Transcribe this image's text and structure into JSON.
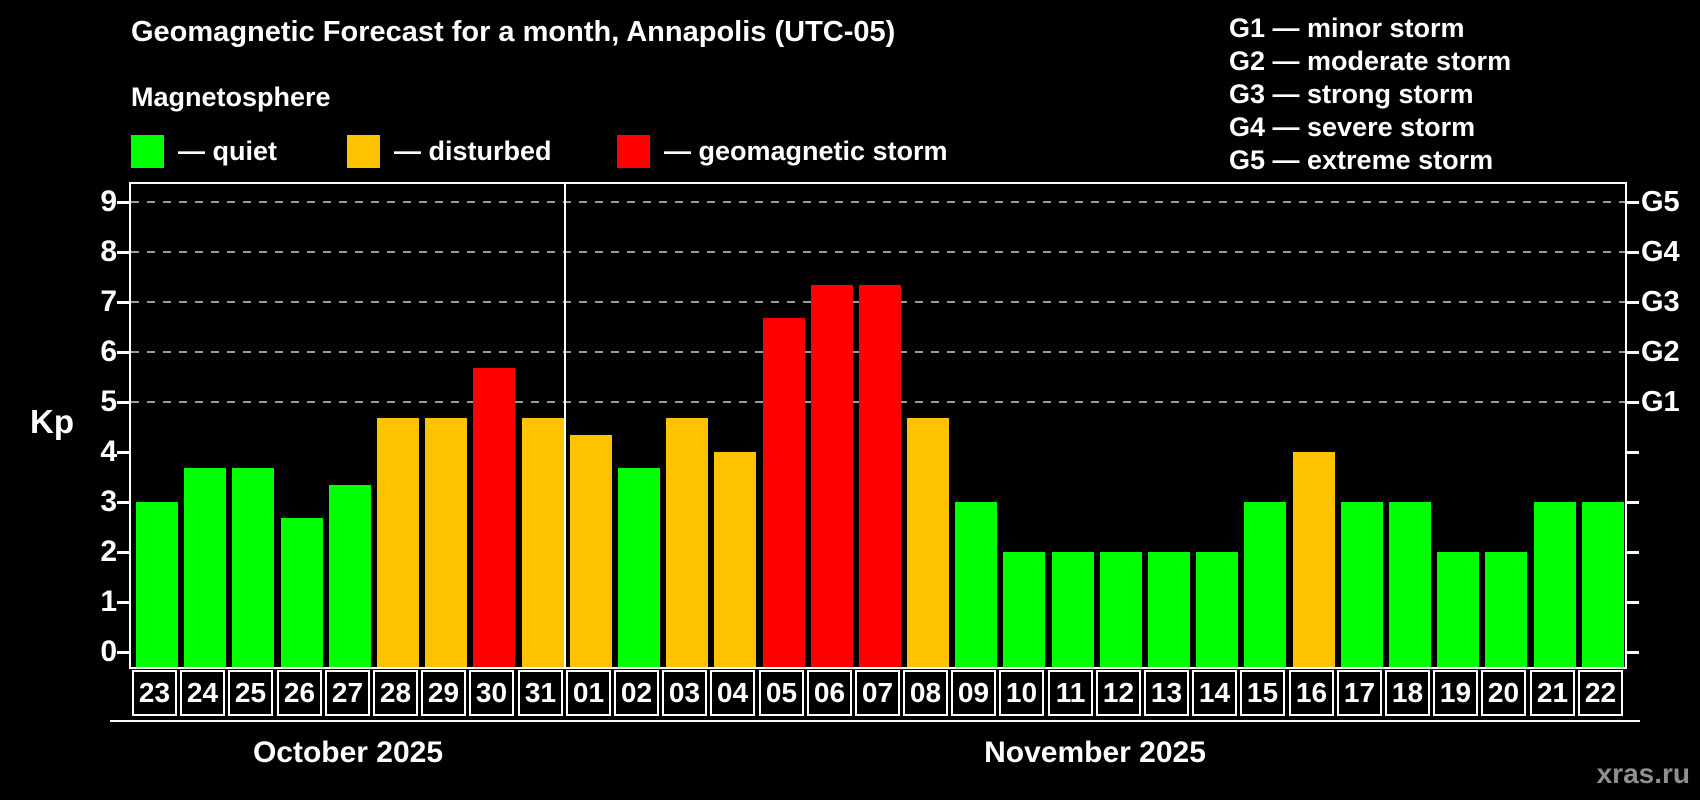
{
  "header": {
    "title": "Geomagnetic Forecast for a month, Annapolis (UTC-05)",
    "subtitle": "Magnetosphere"
  },
  "legend": {
    "items": [
      {
        "name": "quiet",
        "label": "— quiet",
        "color": "#00ff00"
      },
      {
        "name": "disturbed",
        "label": "— disturbed",
        "color": "#ffc200"
      },
      {
        "name": "storm",
        "label": "— geomagnetic storm",
        "color": "#ff0000"
      }
    ]
  },
  "storm_scale_legend": {
    "items": [
      {
        "text": "G1 — minor storm"
      },
      {
        "text": "G2 — moderate storm"
      },
      {
        "text": "G3 — strong storm"
      },
      {
        "text": "G4 — severe storm"
      },
      {
        "text": "G5 — extreme storm"
      }
    ]
  },
  "watermark": "xras.ru",
  "chart_data": {
    "type": "bar",
    "ylabel": "Kp",
    "ylim": [
      0,
      9
    ],
    "y_ticks": [
      0,
      1,
      2,
      3,
      4,
      5,
      6,
      7,
      8,
      9
    ],
    "gridlines_at_kp": [
      5,
      6,
      7,
      8,
      9
    ],
    "grid_on": true,
    "legend_position": "top-left",
    "right_axis": [
      {
        "label": "G1",
        "kp": 5
      },
      {
        "label": "G2",
        "kp": 6
      },
      {
        "label": "G3",
        "kp": 7
      },
      {
        "label": "G4",
        "kp": 8
      },
      {
        "label": "G5",
        "kp": 9
      }
    ],
    "status_colors": {
      "quiet": "#00ff00",
      "disturbed": "#ffc200",
      "storm": "#ff0000"
    },
    "months": [
      {
        "label": "October 2025",
        "days": 9
      },
      {
        "label": "November 2025",
        "days": 22
      }
    ],
    "bars": [
      {
        "day": "23",
        "kp": 3.0,
        "status": "quiet"
      },
      {
        "day": "24",
        "kp": 3.67,
        "status": "quiet"
      },
      {
        "day": "25",
        "kp": 3.67,
        "status": "quiet"
      },
      {
        "day": "26",
        "kp": 2.67,
        "status": "quiet"
      },
      {
        "day": "27",
        "kp": 3.33,
        "status": "quiet"
      },
      {
        "day": "28",
        "kp": 4.67,
        "status": "disturbed"
      },
      {
        "day": "29",
        "kp": 4.67,
        "status": "disturbed"
      },
      {
        "day": "30",
        "kp": 5.67,
        "status": "storm"
      },
      {
        "day": "31",
        "kp": 4.67,
        "status": "disturbed"
      },
      {
        "day": "01",
        "kp": 4.33,
        "status": "disturbed"
      },
      {
        "day": "02",
        "kp": 3.67,
        "status": "quiet"
      },
      {
        "day": "03",
        "kp": 4.67,
        "status": "disturbed"
      },
      {
        "day": "04",
        "kp": 4.0,
        "status": "disturbed"
      },
      {
        "day": "05",
        "kp": 6.67,
        "status": "storm"
      },
      {
        "day": "06",
        "kp": 7.33,
        "status": "storm"
      },
      {
        "day": "07",
        "kp": 7.33,
        "status": "storm"
      },
      {
        "day": "08",
        "kp": 4.67,
        "status": "disturbed"
      },
      {
        "day": "09",
        "kp": 3.0,
        "status": "quiet"
      },
      {
        "day": "10",
        "kp": 2.0,
        "status": "quiet"
      },
      {
        "day": "11",
        "kp": 2.0,
        "status": "quiet"
      },
      {
        "day": "12",
        "kp": 2.0,
        "status": "quiet"
      },
      {
        "day": "13",
        "kp": 2.0,
        "status": "quiet"
      },
      {
        "day": "14",
        "kp": 2.0,
        "status": "quiet"
      },
      {
        "day": "15",
        "kp": 3.0,
        "status": "quiet"
      },
      {
        "day": "16",
        "kp": 4.0,
        "status": "disturbed"
      },
      {
        "day": "17",
        "kp": 3.0,
        "status": "quiet"
      },
      {
        "day": "18",
        "kp": 3.0,
        "status": "quiet"
      },
      {
        "day": "19",
        "kp": 2.0,
        "status": "quiet"
      },
      {
        "day": "20",
        "kp": 2.0,
        "status": "quiet"
      },
      {
        "day": "21",
        "kp": 3.0,
        "status": "quiet"
      },
      {
        "day": "22",
        "kp": 3.0,
        "status": "quiet"
      }
    ]
  }
}
